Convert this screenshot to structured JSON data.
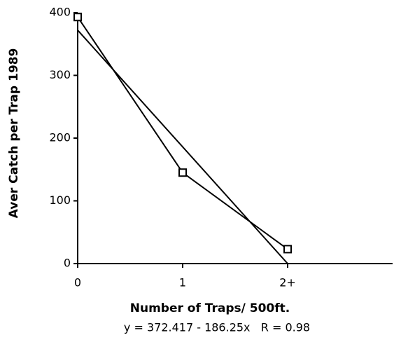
{
  "chart_data": {
    "type": "line",
    "y_label": "Aver Catch per Trap 1989",
    "x_label": "Number of Traps/ 500ft.",
    "annotation": "y = 372.417 - 186.25x   R = 0.98",
    "series": [
      {
        "color": "#000000",
        "marker": "square",
        "x": [
          0,
          1,
          2
        ],
        "values": [
          393,
          145,
          23
        ]
      },
      {
        "color": "#000000",
        "marker": "none",
        "x": [
          0,
          2
        ],
        "values": [
          372,
          0
        ]
      }
    ],
    "xlim": [
      0,
      3
    ],
    "xticks": [
      0,
      1,
      {
        "value": 2,
        "label": "2+"
      }
    ],
    "ylim": [
      0,
      400
    ],
    "yticks": [
      0,
      100,
      200,
      300,
      400
    ],
    "grid": false
  }
}
